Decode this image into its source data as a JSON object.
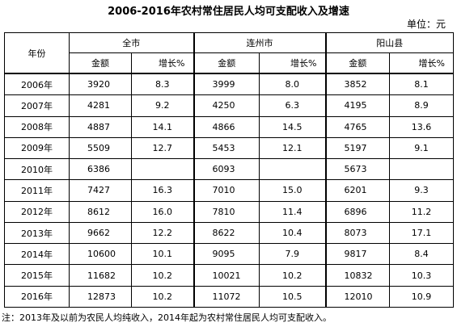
{
  "title": "2006-2016年农村常住居民人均可支配收入及增速",
  "unit_label": "单位：元",
  "table": {
    "year_header": "年份",
    "regions": [
      "全市",
      "连州市",
      "阳山县"
    ],
    "sub_headers": {
      "amount": "金额",
      "growth": "增长%"
    },
    "rows": [
      {
        "year": "2006年",
        "cells": [
          "3920",
          "8.3",
          "3999",
          "8.0",
          "3852",
          "8.1"
        ]
      },
      {
        "year": "2007年",
        "cells": [
          "4281",
          "9.2",
          "4250",
          "6.3",
          "4195",
          "8.9"
        ]
      },
      {
        "year": "2008年",
        "cells": [
          "4887",
          "14.1",
          "4866",
          "14.5",
          "4765",
          "13.6"
        ]
      },
      {
        "year": "2009年",
        "cells": [
          "5509",
          "12.7",
          "5453",
          "12.1",
          "5197",
          "9.1"
        ]
      },
      {
        "year": "2010年",
        "cells": [
          "6386",
          "",
          "6093",
          "",
          "5673",
          ""
        ]
      },
      {
        "year": "2011年",
        "cells": [
          "7427",
          "16.3",
          "7010",
          "15.0",
          "6201",
          "9.3"
        ]
      },
      {
        "year": "2012年",
        "cells": [
          "8612",
          "16.0",
          "7810",
          "11.4",
          "6896",
          "11.2"
        ]
      },
      {
        "year": "2013年",
        "cells": [
          "9662",
          "12.2",
          "8622",
          "10.4",
          "8073",
          "17.1"
        ]
      },
      {
        "year": "2014年",
        "cells": [
          "10600",
          "10.1",
          "9095",
          "7.9",
          "9817",
          "8.4"
        ]
      },
      {
        "year": "2015年",
        "cells": [
          "11682",
          "10.2",
          "10021",
          "10.2",
          "10832",
          "10.3"
        ]
      },
      {
        "year": "2016年",
        "cells": [
          "12873",
          "10.2",
          "11072",
          "10.5",
          "12010",
          "10.9"
        ]
      }
    ]
  },
  "note": "注：2013年及以前为农民人均纯收入，2014年起为农村常住居民人均可支配收入。"
}
